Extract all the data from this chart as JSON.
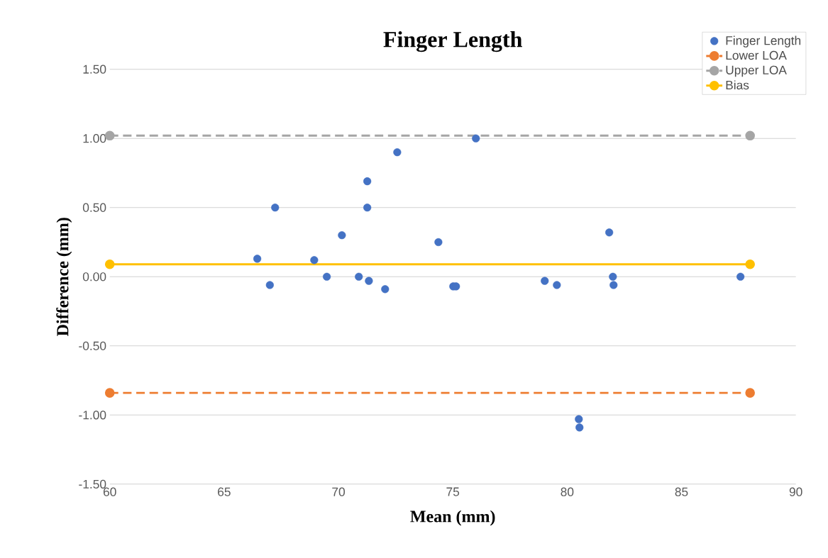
{
  "chart_data": {
    "type": "scatter",
    "title": "Finger Length",
    "xlabel": "Mean (mm)",
    "ylabel": "Difference (mm)",
    "xlim": [
      60,
      90
    ],
    "xticks": [
      60,
      65,
      70,
      75,
      80,
      85,
      90
    ],
    "ylim": [
      -1.5,
      1.5
    ],
    "yticks": [
      {
        "value": -1.5,
        "label": "-1.50"
      },
      {
        "value": -1.0,
        "label": "-1.00"
      },
      {
        "value": -0.5,
        "label": "-0.50"
      },
      {
        "value": 0.0,
        "label": "0.00"
      },
      {
        "value": 0.5,
        "label": "0.50"
      },
      {
        "value": 1.0,
        "label": "1.00"
      },
      {
        "value": 1.5,
        "label": "1.50"
      }
    ],
    "grid": "y",
    "legend": "top right",
    "series": [
      {
        "name": "Finger Length",
        "marker": "circle",
        "color": "#4472c4",
        "x": [
          66.45,
          67.0,
          67.23,
          68.94,
          69.49,
          70.15,
          70.89,
          71.26,
          71.26,
          71.33,
          72.04,
          72.57,
          74.37,
          75.02,
          75.14,
          76.01,
          79.02,
          79.55,
          80.51,
          80.54,
          81.84,
          82.0,
          82.03,
          87.58
        ],
        "values": [
          0.13,
          -0.06,
          0.5,
          0.12,
          0.0,
          0.3,
          0.0,
          0.69,
          0.5,
          -0.03,
          -0.09,
          0.9,
          0.25,
          -0.07,
          -0.07,
          1.0,
          -0.03,
          -0.06,
          -1.03,
          -1.09,
          0.32,
          0.0,
          -0.06,
          0.0
        ]
      },
      {
        "name": "Lower LOA",
        "type": "line",
        "marker": "circle",
        "line_style": "dashed",
        "color": "#ed7d31",
        "x": [
          60,
          88
        ],
        "values": [
          -0.84,
          -0.84
        ]
      },
      {
        "name": "Upper LOA",
        "type": "line",
        "marker": "circle",
        "line_style": "dashed",
        "color": "#a5a5a5",
        "x": [
          60,
          88
        ],
        "values": [
          1.02,
          1.02
        ]
      },
      {
        "name": "Bias",
        "type": "line",
        "marker": "circle",
        "line_style": "solid",
        "color": "#ffc000",
        "x": [
          60,
          88
        ],
        "values": [
          0.09,
          0.09
        ]
      }
    ]
  }
}
